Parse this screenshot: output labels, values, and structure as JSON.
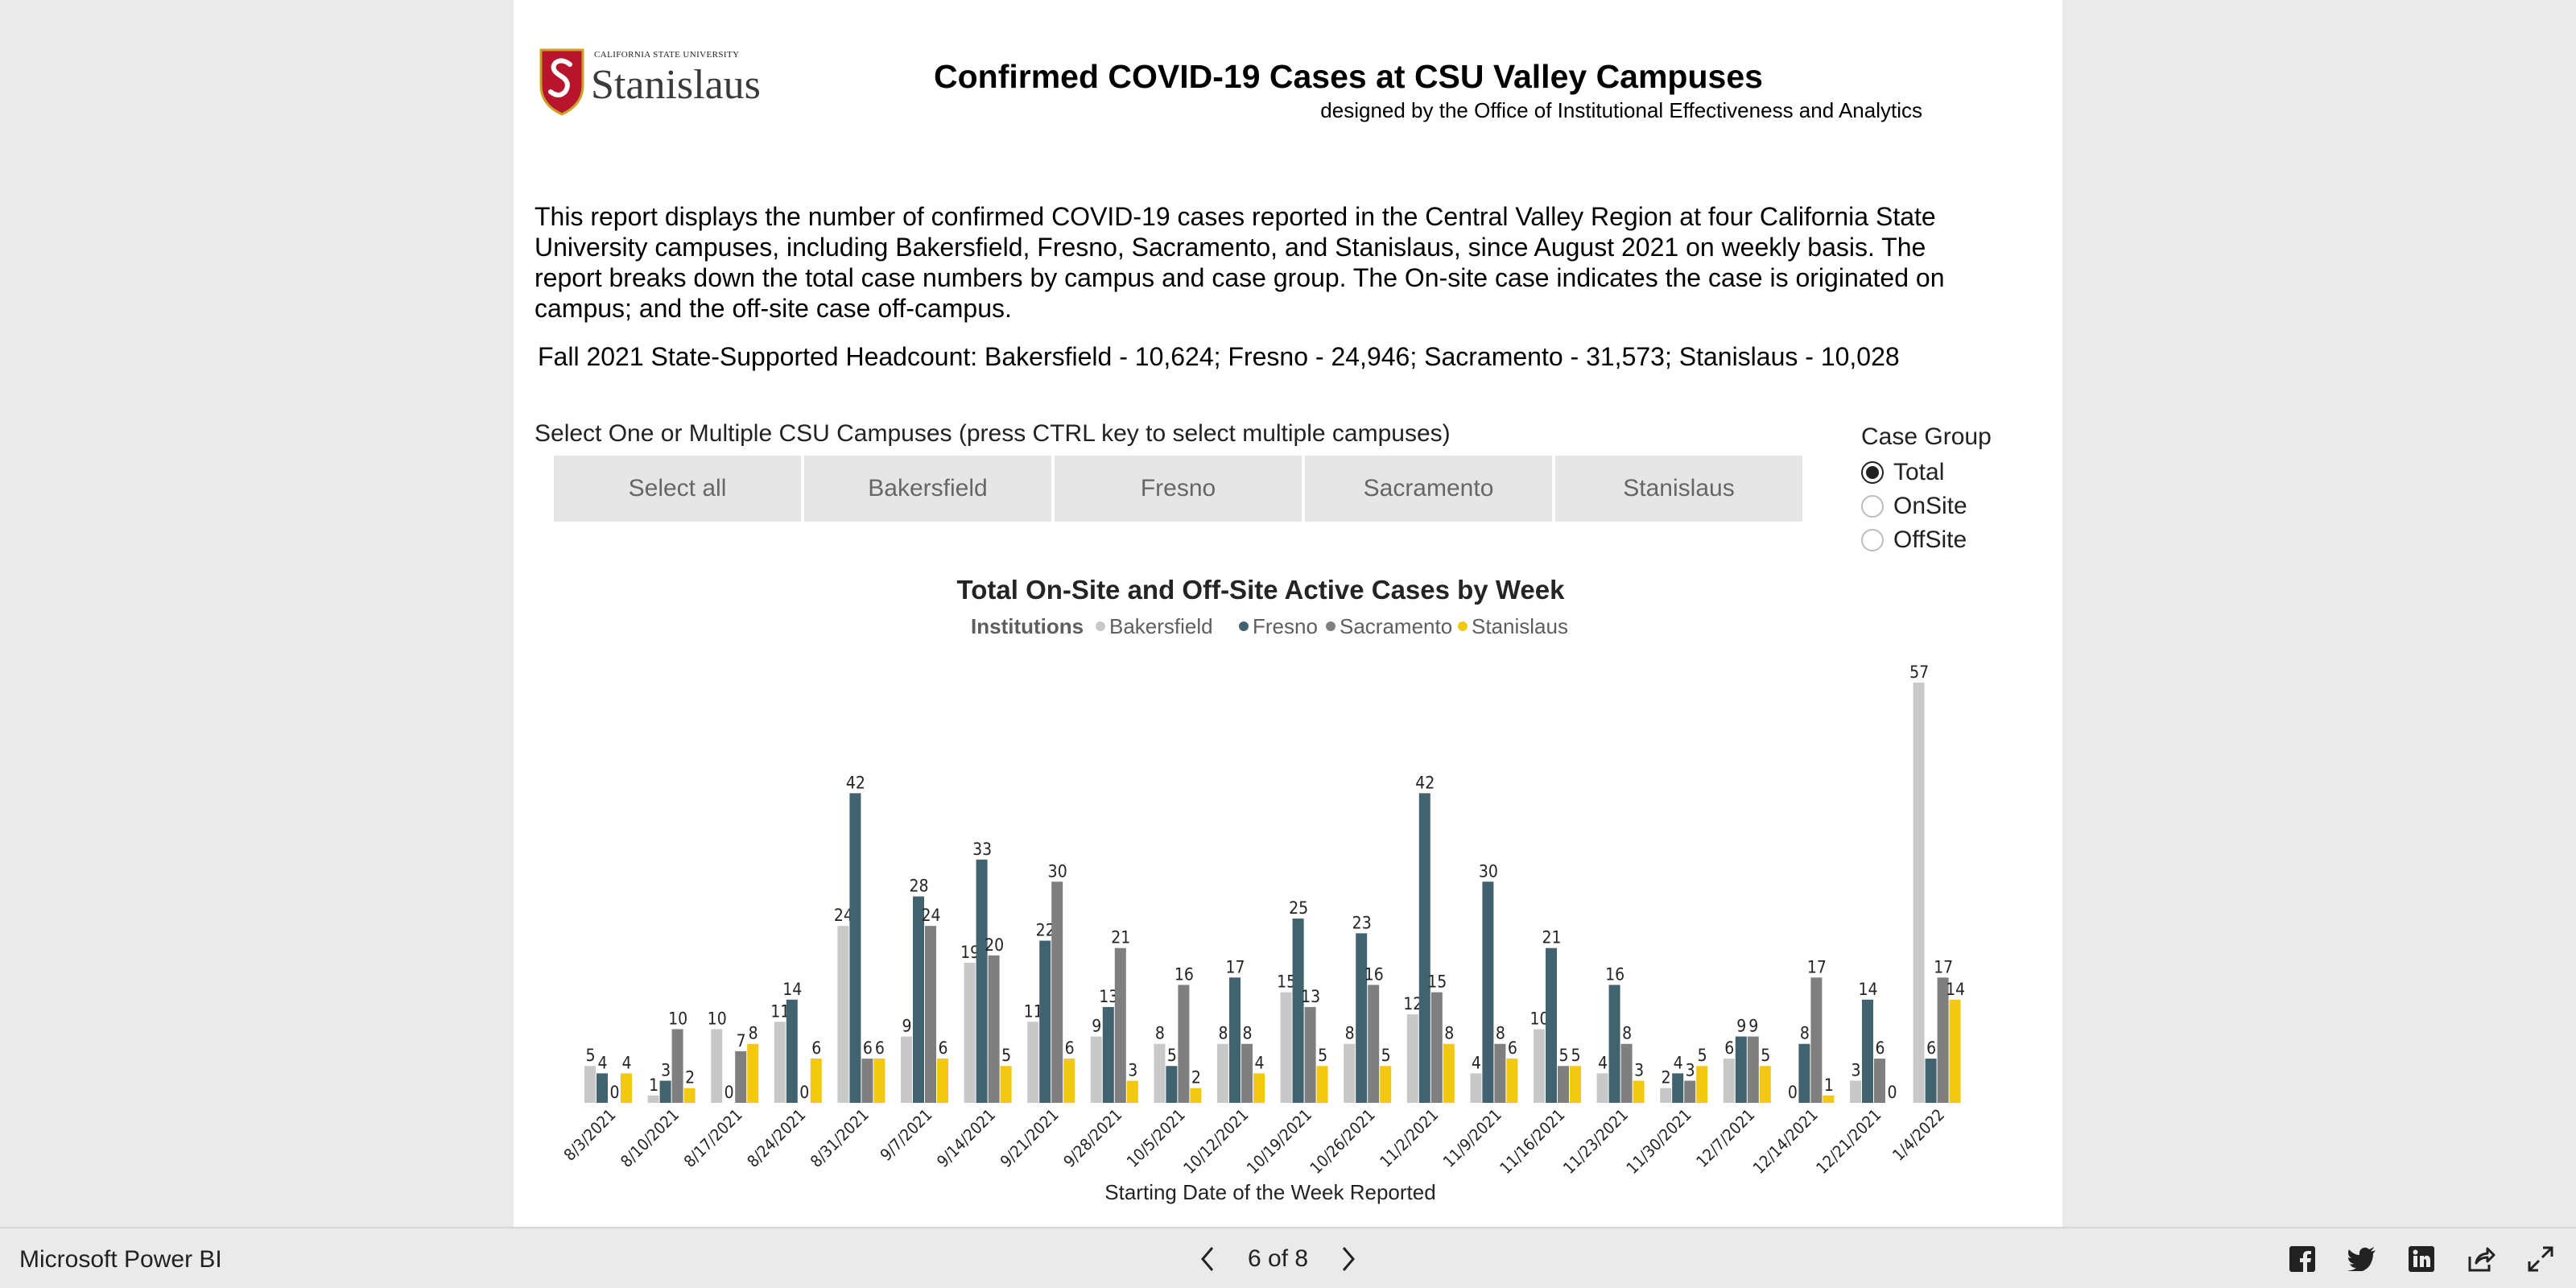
{
  "logo": {
    "university": "CALIFORNIA STATE UNIVERSITY",
    "name": "Stanislaus"
  },
  "report": {
    "title": "Confirmed COVID-19 Cases at CSU Valley Campuses",
    "subtitle": "designed by the Office of Institutional Effectiveness and Analytics",
    "description": "This report displays the number of confirmed COVID-19 cases reported in the Central Valley Region at four California State University campuses, including Bakersfield, Fresno, Sacramento, and Stanislaus, since August 2021 on weekly basis. The report breaks down the total case numbers by campus and case group. The On-site case indicates the case is originated on campus; and the off-site case off-campus.",
    "headcount": "Fall 2021 State-Supported Headcount: Bakersfield - 10,624; Fresno -  24,946; Sacramento - 31,573; Stanislaus - 10,028"
  },
  "slicer": {
    "label": "Select One or Multiple CSU Campuses (press CTRL key to select multiple campuses)",
    "options": [
      "Select all",
      "Bakersfield",
      "Fresno",
      "Sacramento",
      "Stanislaus"
    ]
  },
  "case_group": {
    "title": "Case Group",
    "options": [
      {
        "label": "Total",
        "checked": true
      },
      {
        "label": "OnSite",
        "checked": false
      },
      {
        "label": "OffSite",
        "checked": false
      }
    ]
  },
  "chart_data": {
    "type": "bar",
    "title": "Total On-Site and Off-Site Active Cases by Week",
    "legend_title": "Institutions",
    "legend_position": "top-center",
    "xlabel": "Starting Date of the Week Reported",
    "ylabel": "",
    "ylim": [
      0,
      57
    ],
    "grid": false,
    "categories": [
      "8/3/2021",
      "8/10/2021",
      "8/17/2021",
      "8/24/2021",
      "8/31/2021",
      "9/7/2021",
      "9/14/2021",
      "9/21/2021",
      "9/28/2021",
      "10/5/2021",
      "10/12/2021",
      "10/19/2021",
      "10/26/2021",
      "11/2/2021",
      "11/9/2021",
      "11/16/2021",
      "11/23/2021",
      "11/30/2021",
      "12/7/2021",
      "12/14/2021",
      "12/21/2021",
      "1/4/2022"
    ],
    "series": [
      {
        "name": "Bakersfield",
        "color": "#c8c8c8",
        "values": [
          5,
          1,
          10,
          11,
          24,
          9,
          19,
          11,
          9,
          8,
          8,
          15,
          8,
          12,
          4,
          10,
          4,
          2,
          6,
          0,
          3,
          57
        ]
      },
      {
        "name": "Fresno",
        "color": "#41626f",
        "values": [
          4,
          3,
          0,
          14,
          42,
          28,
          33,
          22,
          13,
          5,
          17,
          25,
          23,
          42,
          30,
          21,
          16,
          4,
          9,
          8,
          14,
          6
        ]
      },
      {
        "name": "Sacramento",
        "color": "#7f7f7f",
        "values": [
          0,
          10,
          7,
          0,
          6,
          24,
          20,
          30,
          21,
          16,
          8,
          13,
          16,
          15,
          8,
          5,
          8,
          3,
          9,
          17,
          6,
          17
        ]
      },
      {
        "name": "Stanislaus",
        "color": "#f2c811",
        "values": [
          4,
          2,
          8,
          6,
          6,
          6,
          5,
          6,
          3,
          2,
          4,
          5,
          5,
          8,
          6,
          5,
          3,
          5,
          5,
          1,
          0,
          14
        ]
      }
    ]
  },
  "footer": {
    "brand": "Microsoft Power BI",
    "page_indicator": "6 of 8"
  }
}
